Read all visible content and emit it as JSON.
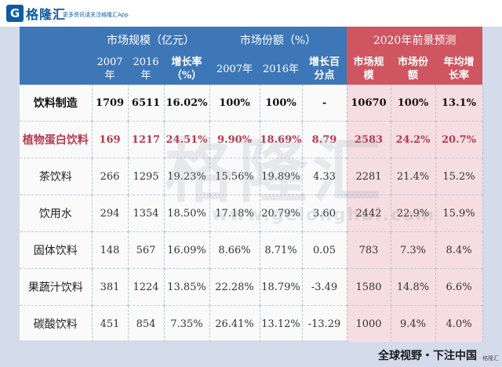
{
  "header": {
    "logo_mark": "G",
    "logo_text": "格隆汇",
    "logo_subtitle": "更多资讯请关注格隆汇App"
  },
  "table": {
    "group_headers": {
      "market_size": "市场规模（亿元）",
      "market_share": "市场份额（%）",
      "forecast": "2020年前景预测"
    },
    "sub_headers": {
      "size_2007": "2007\n年",
      "size_2016": "2016\n年",
      "size_growth": "增长率\n（%）",
      "share_2007": "2007年",
      "share_2016": "2016年",
      "share_change": "增长百\n分点",
      "forecast_size": "市场规\n模",
      "forecast_share": "市场份\n额",
      "forecast_cagr": "年均增\n长率"
    },
    "rows": [
      {
        "name": "饮料制造",
        "s2007": "1709",
        "s2016": "6511",
        "growth": "16.02%",
        "sh2007": "100%",
        "sh2016": "100%",
        "pts": "-",
        "f_size": "10670",
        "f_share": "100%",
        "f_cagr": "13.1%"
      },
      {
        "name": "植物蛋白饮料",
        "s2007": "169",
        "s2016": "1217",
        "growth": "24.51%",
        "sh2007": "9.90%",
        "sh2016": "18.69%",
        "pts": "8.79",
        "f_size": "2583",
        "f_share": "24.2%",
        "f_cagr": "20.7%"
      },
      {
        "name": "茶饮料",
        "s2007": "266",
        "s2016": "1295",
        "growth": "19.23%",
        "sh2007": "15.56%",
        "sh2016": "19.89%",
        "pts": "4.33",
        "f_size": "2281",
        "f_share": "21.4%",
        "f_cagr": "15.2%"
      },
      {
        "name": "饮用水",
        "s2007": "294",
        "s2016": "1354",
        "growth": "18.50%",
        "sh2007": "17.18%",
        "sh2016": "20.79%",
        "pts": "3.60",
        "f_size": "2442",
        "f_share": "22.9%",
        "f_cagr": "15.9%"
      },
      {
        "name": "固体饮料",
        "s2007": "148",
        "s2016": "567",
        "growth": "16.09%",
        "sh2007": "8.66%",
        "sh2016": "8.71%",
        "pts": "0.05",
        "f_size": "783",
        "f_share": "7.3%",
        "f_cagr": "8.4%"
      },
      {
        "name": "果蔬汁饮料",
        "s2007": "381",
        "s2016": "1224",
        "growth": "13.85%",
        "sh2007": "22.28%",
        "sh2016": "18.79%",
        "pts": "-3.49",
        "f_size": "1580",
        "f_share": "14.8%",
        "f_cagr": "6.6%"
      },
      {
        "name": "碳酸饮料",
        "s2007": "451",
        "s2016": "854",
        "growth": "7.35%",
        "sh2007": "26.41%",
        "sh2016": "13.12%",
        "pts": "-13.29",
        "f_size": "1000",
        "f_share": "9.4%",
        "f_cagr": "4.0%"
      }
    ]
  },
  "watermark": {
    "big": "格隆汇",
    "url": "www.gelonghui.com"
  },
  "footer": {
    "slogan": "全球视野・下注中国",
    "corner": "格隆汇"
  },
  "colors": {
    "header_blue": "#3e77b7",
    "header_red": "#cf5560",
    "highlight_row": "#b53a4e",
    "forecast_tint": "#f6dde1"
  }
}
